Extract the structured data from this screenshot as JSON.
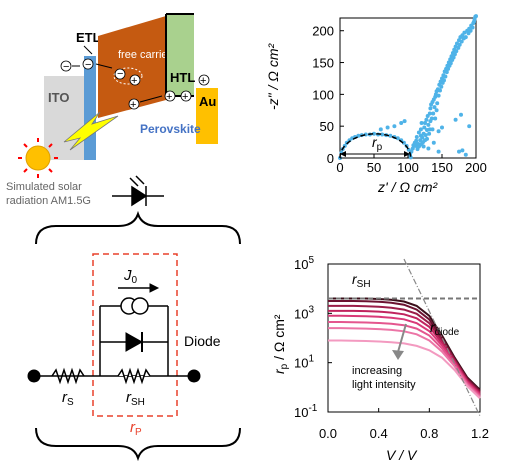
{
  "energy_diagram": {
    "itO": "ITO",
    "etl": "ETL",
    "free_carrier": "free carrier",
    "htl": "HTL",
    "au": "Au",
    "perovskite": "Perovskite",
    "sun_caption_line1": "Simulated solar",
    "sun_caption_line2": "radiation AM1.5G",
    "colors": {
      "ito": "#d9d9d9",
      "etl": "#5b9bd5",
      "perovskite": "#c55a11",
      "htl": "#a9d18e",
      "au": "#ffc000",
      "sun": "#ffc000",
      "sun_rays": "#ff0000",
      "bolt": "#ffff00"
    }
  },
  "circuit": {
    "j0_label": "J",
    "j0_sub": "0",
    "diode_label": "Diode",
    "rs_label": "r",
    "rs_sub": "S",
    "rsh_label": "r",
    "rsh_sub": "SH",
    "rp_label": "r",
    "rp_sub": "P",
    "colors": {
      "rp_box": "#e8412b",
      "wire": "#000000"
    }
  },
  "nyquist_plot": {
    "ylabel": "-z\" / Ω cm²",
    "xlabel": "z' / Ω cm²",
    "annotation": "r",
    "annotation_sub": "p",
    "x_ticks": [
      "0",
      "50",
      "100",
      "150",
      "200"
    ],
    "y_ticks": [
      "0",
      "50",
      "100",
      "150",
      "200"
    ],
    "colors": {
      "points": "#4fb3e8",
      "fit": "#000000"
    }
  },
  "rp_plot": {
    "ylabel": "r",
    "ylabel_sub": "p",
    "ylabel_rest": " / Ω cm²",
    "xlabel": "V / V",
    "rsh_label": "r",
    "rsh_sub": "SH",
    "rdiode_label": "r",
    "rdiode_sub": "diode",
    "arrow_text_line1": "increasing",
    "arrow_text_line2": "light intensity",
    "x_ticks": [
      "0.0",
      "0.4",
      "0.8",
      "1.2"
    ],
    "y_ticks": [
      {
        "base": "10",
        "exp": "-1"
      },
      {
        "base": "10",
        "exp": "1"
      },
      {
        "base": "10",
        "exp": "3"
      },
      {
        "base": "10",
        "exp": "5"
      }
    ]
  },
  "chart_data": [
    {
      "type": "scatter",
      "xlabel": "z' / Ω cm²",
      "ylabel": "-z\" / Ω cm²",
      "xlim": [
        0,
        200
      ],
      "ylim": [
        0,
        220
      ],
      "points": [
        [
          0,
          0
        ],
        [
          2,
          8
        ],
        [
          4,
          14
        ],
        [
          7,
          19
        ],
        [
          10,
          24
        ],
        [
          14,
          28
        ],
        [
          18,
          31
        ],
        [
          22,
          33
        ],
        [
          27,
          35
        ],
        [
          32,
          36
        ],
        [
          38,
          37
        ],
        [
          44,
          37
        ],
        [
          50,
          38
        ],
        [
          56,
          37
        ],
        [
          62,
          37
        ],
        [
          68,
          36
        ],
        [
          74,
          35
        ],
        [
          80,
          33
        ],
        [
          85,
          31
        ],
        [
          90,
          28
        ],
        [
          94,
          24
        ],
        [
          98,
          19
        ],
        [
          101,
          13
        ],
        [
          103,
          6
        ],
        [
          104,
          1
        ],
        [
          103,
          5
        ],
        [
          105,
          10
        ],
        [
          107,
          15
        ],
        [
          108,
          20
        ],
        [
          110,
          24
        ],
        [
          111,
          19
        ],
        [
          112,
          27
        ],
        [
          113,
          33
        ],
        [
          114,
          14
        ],
        [
          115,
          22
        ],
        [
          116,
          18
        ],
        [
          116,
          40
        ],
        [
          117,
          20
        ],
        [
          118,
          28
        ],
        [
          119,
          35
        ],
        [
          119,
          45
        ],
        [
          120,
          22
        ],
        [
          120,
          55
        ],
        [
          121,
          32
        ],
        [
          122,
          25
        ],
        [
          123,
          18
        ],
        [
          123,
          38
        ],
        [
          124,
          48
        ],
        [
          125,
          28
        ],
        [
          125,
          55
        ],
        [
          126,
          36
        ],
        [
          127,
          60
        ],
        [
          128,
          44
        ],
        [
          128,
          30
        ],
        [
          129,
          66
        ],
        [
          130,
          52
        ],
        [
          131,
          38
        ],
        [
          132,
          70
        ],
        [
          132,
          45
        ],
        [
          133,
          78
        ],
        [
          133,
          58
        ],
        [
          134,
          84
        ],
        [
          135,
          62
        ],
        [
          136,
          45
        ],
        [
          136,
          88
        ],
        [
          137,
          70
        ],
        [
          138,
          92
        ],
        [
          138,
          24
        ],
        [
          139,
          80
        ],
        [
          140,
          96
        ],
        [
          140,
          62
        ],
        [
          141,
          100
        ],
        [
          142,
          75
        ],
        [
          142,
          105
        ],
        [
          143,
          86
        ],
        [
          144,
          108
        ],
        [
          145,
          98
        ],
        [
          146,
          115
        ],
        [
          147,
          106
        ],
        [
          148,
          120
        ],
        [
          149,
          112
        ],
        [
          150,
          125
        ],
        [
          151,
          118
        ],
        [
          152,
          130
        ],
        [
          153,
          122
        ],
        [
          154,
          136
        ],
        [
          155,
          128
        ],
        [
          156,
          140
        ],
        [
          157,
          135
        ],
        [
          158,
          145
        ],
        [
          159,
          140
        ],
        [
          160,
          150
        ],
        [
          161,
          145
        ],
        [
          162,
          155
        ],
        [
          163,
          149
        ],
        [
          164,
          160
        ],
        [
          165,
          154
        ],
        [
          166,
          165
        ],
        [
          167,
          158
        ],
        [
          168,
          170
        ],
        [
          169,
          163
        ],
        [
          170,
          175
        ],
        [
          171,
          168
        ],
        [
          172,
          180
        ],
        [
          174,
          173
        ],
        [
          175,
          185
        ],
        [
          176,
          178
        ],
        [
          177,
          190
        ],
        [
          179,
          183
        ],
        [
          180,
          193
        ],
        [
          182,
          188
        ],
        [
          183,
          197
        ],
        [
          185,
          190
        ],
        [
          187,
          200
        ],
        [
          189,
          196
        ],
        [
          190,
          203
        ],
        [
          192,
          200
        ],
        [
          193,
          208
        ],
        [
          195,
          205
        ],
        [
          196,
          212
        ],
        [
          197,
          214
        ],
        [
          198,
          218
        ],
        [
          199,
          222
        ],
        [
          200,
          223
        ],
        [
          60,
          45
        ],
        [
          70,
          48
        ],
        [
          80,
          50
        ],
        [
          90,
          55
        ],
        [
          95,
          58
        ],
        [
          130,
          15
        ],
        [
          145,
          10
        ],
        [
          175,
          10
        ],
        [
          180,
          12
        ],
        [
          185,
          5
        ],
        [
          190,
          50
        ],
        [
          150,
          48
        ],
        [
          145,
          42
        ],
        [
          170,
          60
        ],
        [
          178,
          68
        ]
      ],
      "fit_semicircle": {
        "x_start": 0,
        "x_end": 104,
        "peak": 38
      }
    },
    {
      "type": "line",
      "xlabel": "V / V",
      "ylabel": "r p / Ω cm²",
      "xlim": [
        0,
        1.2
      ],
      "ylim_log10": [
        -1,
        5
      ],
      "x": [
        0.0,
        0.1,
        0.2,
        0.3,
        0.4,
        0.5,
        0.6,
        0.7,
        0.8,
        0.9,
        1.0,
        1.1,
        1.2
      ],
      "series": [
        {
          "log10_values": [
            3.6,
            3.6,
            3.6,
            3.6,
            3.58,
            3.55,
            3.48,
            3.3,
            2.9,
            2.1,
            1.2,
            0.4,
            -0.1
          ]
        },
        {
          "log10_values": [
            3.5,
            3.5,
            3.5,
            3.49,
            3.47,
            3.43,
            3.35,
            3.15,
            2.75,
            2.0,
            1.15,
            0.35,
            -0.15
          ]
        },
        {
          "log10_values": [
            3.3,
            3.3,
            3.3,
            3.29,
            3.27,
            3.23,
            3.15,
            2.98,
            2.6,
            1.9,
            1.1,
            0.3,
            -0.2
          ]
        },
        {
          "log10_values": [
            3.1,
            3.1,
            3.1,
            3.09,
            3.07,
            3.03,
            2.96,
            2.8,
            2.45,
            1.8,
            1.05,
            0.25,
            -0.25
          ]
        },
        {
          "log10_values": [
            2.9,
            2.9,
            2.89,
            2.88,
            2.86,
            2.82,
            2.76,
            2.6,
            2.28,
            1.7,
            1.0,
            0.2,
            -0.3
          ]
        },
        {
          "log10_values": [
            2.65,
            2.65,
            2.64,
            2.63,
            2.61,
            2.58,
            2.52,
            2.38,
            2.1,
            1.58,
            0.92,
            0.15,
            -0.35
          ]
        },
        {
          "log10_values": [
            2.4,
            2.4,
            2.39,
            2.38,
            2.36,
            2.33,
            2.27,
            2.15,
            1.9,
            1.45,
            0.85,
            0.1,
            -0.4
          ]
        },
        {
          "log10_values": [
            1.9,
            1.9,
            1.89,
            1.88,
            1.86,
            1.83,
            1.78,
            1.68,
            1.5,
            1.2,
            0.7,
            0.05,
            -0.45
          ]
        }
      ],
      "rsh_log10": 3.6,
      "diode_line": {
        "x": [
          0.6,
          1.2
        ],
        "log10": [
          5.2,
          -1.3
        ]
      }
    }
  ]
}
